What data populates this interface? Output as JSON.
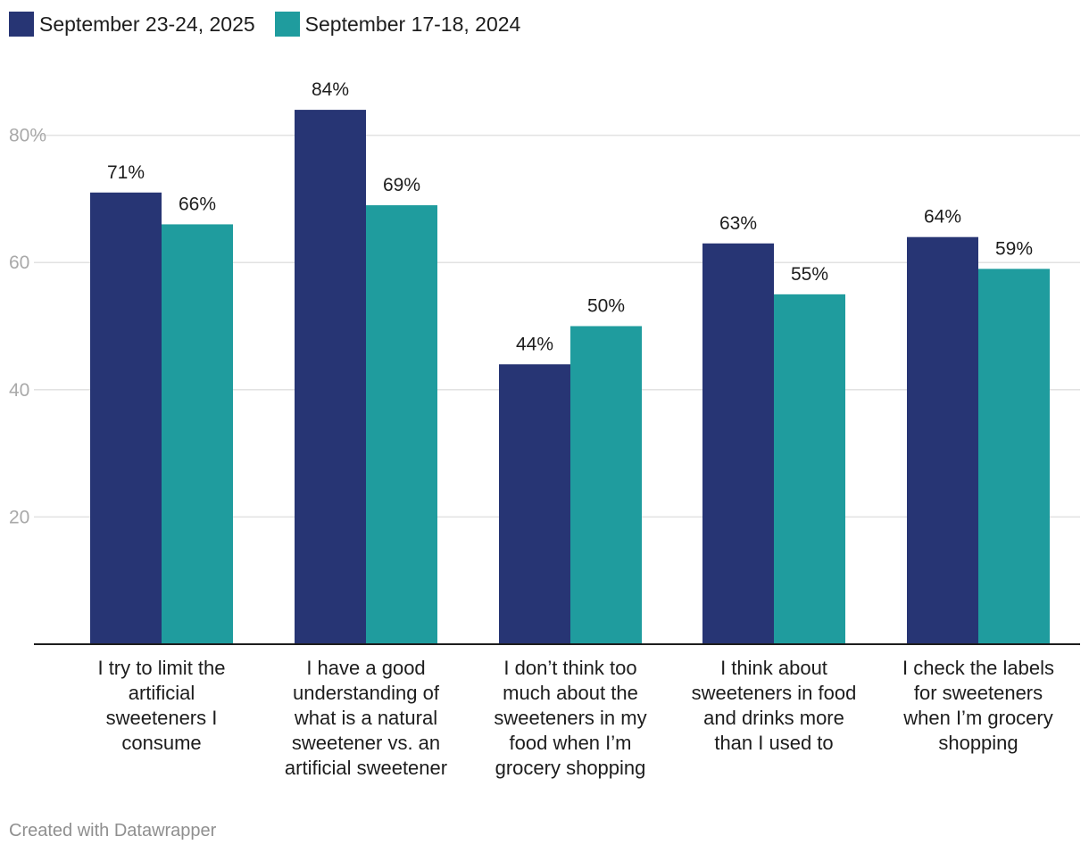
{
  "legend": [
    {
      "label": "September 23-24, 2025",
      "color": "#273574"
    },
    {
      "label": "September 17-18, 2024",
      "color": "#1f9c9e"
    }
  ],
  "footer": {
    "credit": "Created with Datawrapper"
  },
  "chart_data": {
    "type": "bar",
    "title": "",
    "xlabel": "",
    "ylabel": "",
    "ylim": [
      0,
      90
    ],
    "yticks": [
      20,
      40,
      60,
      80
    ],
    "ytick_labels": [
      "20",
      "40",
      "60",
      "80%"
    ],
    "grid": true,
    "legend_position": "top-left",
    "categories": [
      [
        "I try to limit the",
        "artificial",
        "sweeteners I",
        "consume"
      ],
      [
        "I have a good",
        "understanding of",
        "what is a natural",
        "sweetener vs. an",
        "artificial sweetener"
      ],
      [
        "I don’t think too",
        "much about the",
        "sweeteners in my",
        "food when I’m",
        "grocery shopping"
      ],
      [
        "I think about",
        "sweeteners in food",
        "and drinks more",
        "than I used to"
      ],
      [
        "I check the labels",
        "for sweeteners",
        "when I’m grocery",
        "shopping"
      ]
    ],
    "series": [
      {
        "name": "September 23-24, 2025",
        "color": "#273574",
        "values": [
          71,
          84,
          44,
          63,
          64
        ],
        "labels": [
          "71%",
          "84%",
          "44%",
          "63%",
          "64%"
        ]
      },
      {
        "name": "September 17-18, 2024",
        "color": "#1f9c9e",
        "values": [
          66,
          69,
          50,
          55,
          59
        ],
        "labels": [
          "66%",
          "69%",
          "50%",
          "55%",
          "59%"
        ]
      }
    ]
  }
}
